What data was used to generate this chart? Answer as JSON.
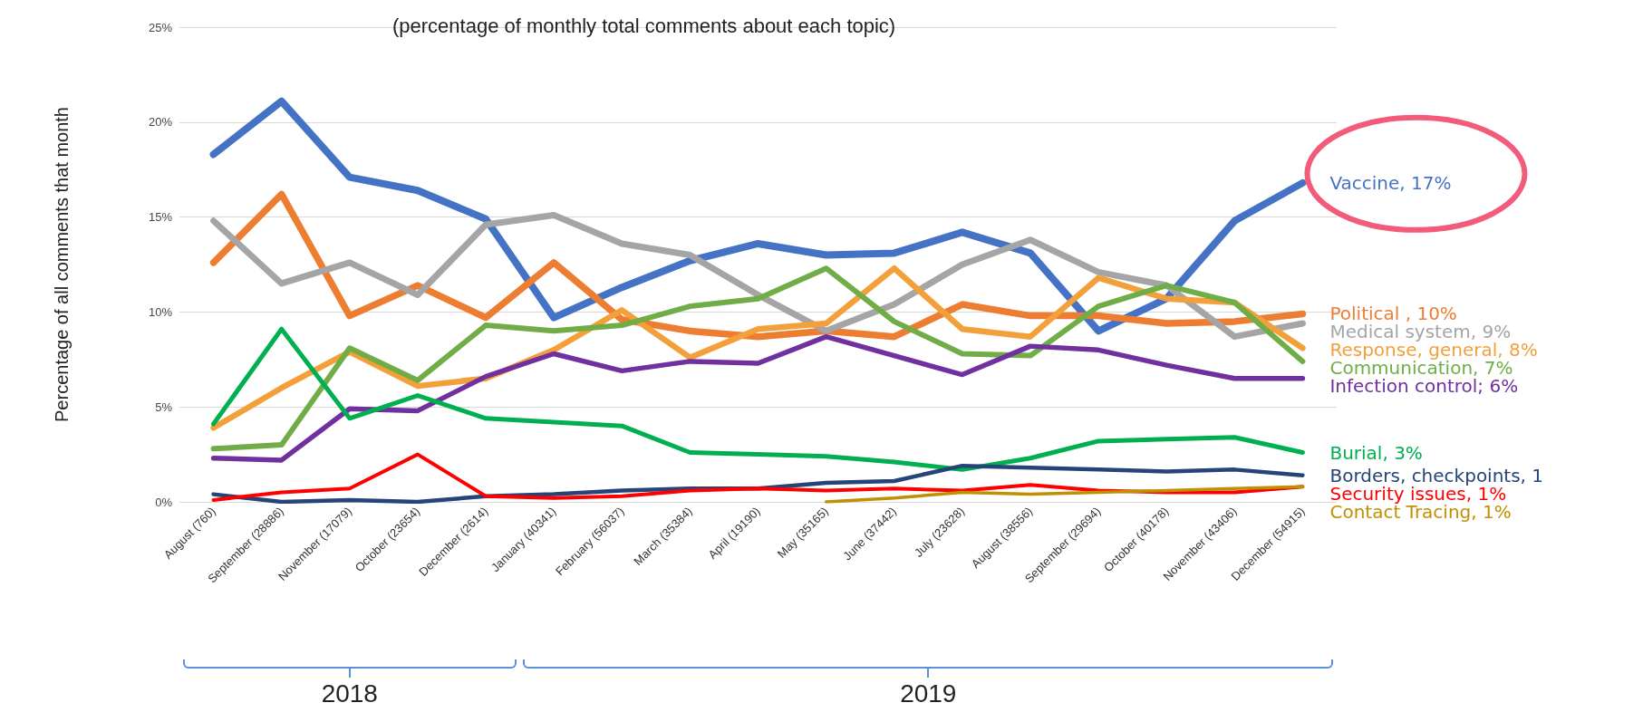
{
  "chart_data": {
    "type": "line",
    "title": "(percentage of monthly total comments about each topic)",
    "ylabel": "Percentage of all comments that month",
    "categories": [
      "August (760)",
      "September (28886)",
      "November (17079)",
      "October (23654)",
      "December (2614)",
      "January (40341)",
      "February (56037)",
      "March (35384)",
      "April (19190)",
      "May (35165)",
      "June (37442)",
      "July (23628)",
      "August (38556)",
      "September (29694)",
      "October (40178)",
      "November (43406)",
      "December (54915)"
    ],
    "series": [
      {
        "name": "Vaccine, 17%",
        "color": "#4472c4",
        "values": [
          18.3,
          21.1,
          17.1,
          16.4,
          14.9,
          9.7,
          11.3,
          12.7,
          13.6,
          13.0,
          13.1,
          14.2,
          13.1,
          9.0,
          10.7,
          14.8,
          16.8
        ]
      },
      {
        "name": "Political , 10%",
        "color": "#ed7d31",
        "values": [
          12.6,
          16.2,
          9.8,
          11.4,
          9.7,
          12.6,
          9.6,
          9.0,
          8.7,
          9.0,
          8.7,
          10.4,
          9.8,
          9.8,
          9.4,
          9.5,
          9.9
        ]
      },
      {
        "name": "Medical system, 9%",
        "color": "#a5a5a5",
        "values": [
          14.8,
          11.5,
          12.6,
          10.9,
          14.6,
          15.1,
          13.6,
          13.0,
          10.9,
          9.0,
          10.4,
          12.5,
          13.8,
          12.1,
          11.4,
          8.7,
          9.4
        ]
      },
      {
        "name": "Response, general, 8%",
        "color": "#f4a03a",
        "values": [
          3.9,
          6.0,
          7.9,
          6.1,
          6.5,
          8.0,
          10.1,
          7.6,
          9.1,
          9.4,
          12.3,
          9.1,
          8.7,
          11.8,
          10.7,
          10.5,
          8.1
        ]
      },
      {
        "name": "Communication, 7%",
        "color": "#70ad47",
        "values": [
          2.8,
          3.0,
          8.1,
          6.4,
          9.3,
          9.0,
          9.3,
          10.3,
          10.7,
          12.3,
          9.5,
          7.8,
          7.7,
          10.3,
          11.4,
          10.5,
          7.4
        ]
      },
      {
        "name": "Infection control; 6%",
        "color": "#7030a0",
        "values": [
          2.3,
          2.2,
          4.9,
          4.8,
          6.6,
          7.8,
          6.9,
          7.4,
          7.3,
          8.7,
          7.7,
          6.7,
          8.2,
          8.0,
          7.2,
          6.5,
          6.5
        ]
      },
      {
        "name": "Burial, 3%",
        "color": "#00b050",
        "values": [
          4.1,
          9.1,
          4.4,
          5.6,
          4.4,
          4.2,
          4.0,
          2.6,
          2.5,
          2.4,
          2.1,
          1.7,
          2.3,
          3.2,
          3.3,
          3.4,
          2.6
        ]
      },
      {
        "name": "Borders, checkpoints, 1",
        "color": "#264478",
        "values": [
          0.4,
          0.0,
          0.1,
          0.0,
          0.3,
          0.4,
          0.6,
          0.7,
          0.7,
          1.0,
          1.1,
          1.9,
          1.8,
          1.7,
          1.6,
          1.7,
          1.4
        ]
      },
      {
        "name": "Security issues, 1%",
        "color": "#ff0000",
        "values": [
          0.1,
          0.5,
          0.7,
          2.5,
          0.3,
          0.2,
          0.3,
          0.6,
          0.7,
          0.6,
          0.7,
          0.6,
          0.9,
          0.6,
          0.5,
          0.5,
          0.8
        ]
      },
      {
        "name": "Contact Tracing, 1%",
        "color": "#bf9000",
        "values": [
          null,
          null,
          null,
          null,
          null,
          null,
          null,
          null,
          null,
          0.0,
          0.2,
          0.5,
          0.4,
          0.5,
          0.6,
          0.7,
          0.8
        ]
      }
    ],
    "ylim": [
      0,
      25
    ],
    "yticks": [
      {
        "value": 0,
        "label": "0%"
      },
      {
        "value": 5,
        "label": "5%"
      },
      {
        "value": 10,
        "label": "10%"
      },
      {
        "value": 15,
        "label": "15%"
      },
      {
        "value": 20,
        "label": "20%"
      },
      {
        "value": 25,
        "label": "25%"
      }
    ],
    "grid": "y",
    "marker": "none",
    "line_style": "solid",
    "annotations": [
      "2018",
      "2019"
    ]
  }
}
